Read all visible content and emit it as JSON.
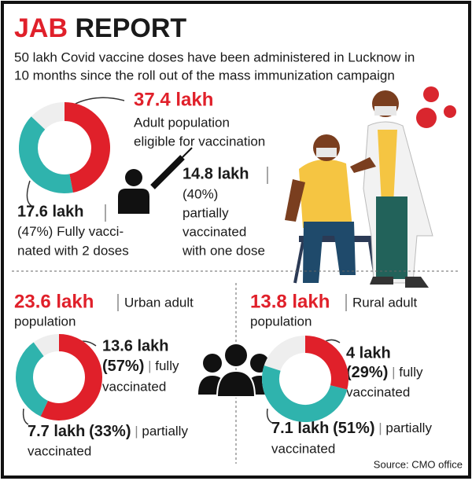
{
  "title_red": "JAB",
  "title_black": "REPORT",
  "subtitle": [
    "50 lakh Covid vaccine doses have been administered in Lucknow in",
    "10 months since the roll out of the mass immunization campaign"
  ],
  "eligible": {
    "amount": "37.4 lakh",
    "lines": [
      "Adult population",
      "eligible for vaccination"
    ]
  },
  "top": {
    "fully": {
      "amount": "17.6 lakh",
      "percent": 47,
      "percent_label": "(47%)",
      "lines": [
        "Fully vacci-",
        "nated with 2 doses"
      ]
    },
    "partial": {
      "amount": "14.8 lakh",
      "percent": 40,
      "percent_label": "(40%)",
      "lines": [
        "partially",
        "vaccinated",
        "with one dose"
      ]
    }
  },
  "urban": {
    "amount": "23.6 lakh",
    "label": [
      "Urban adult",
      "population"
    ],
    "fully": {
      "amount": "13.6 lakh",
      "percent": 57,
      "percent_label": "(57%)",
      "lines": [
        "fully",
        "vaccinated"
      ]
    },
    "partial": {
      "amount": "7.7 lakh",
      "percent": 33,
      "percent_label": "(33%)",
      "lines": [
        "partially",
        "vaccinated"
      ]
    }
  },
  "rural": {
    "amount": "13.8 lakh",
    "label": [
      "Rural adult",
      "population"
    ],
    "fully": {
      "amount": "4 lakh",
      "percent": 29,
      "percent_label": "(29%)",
      "lines": [
        "fully",
        "vaccinated"
      ]
    },
    "partial": {
      "amount": "7.1 lakh",
      "percent": 51,
      "percent_label": "(51%)",
      "lines": [
        "partially",
        "vaccinated"
      ]
    }
  },
  "source": "Source: CMO office"
}
